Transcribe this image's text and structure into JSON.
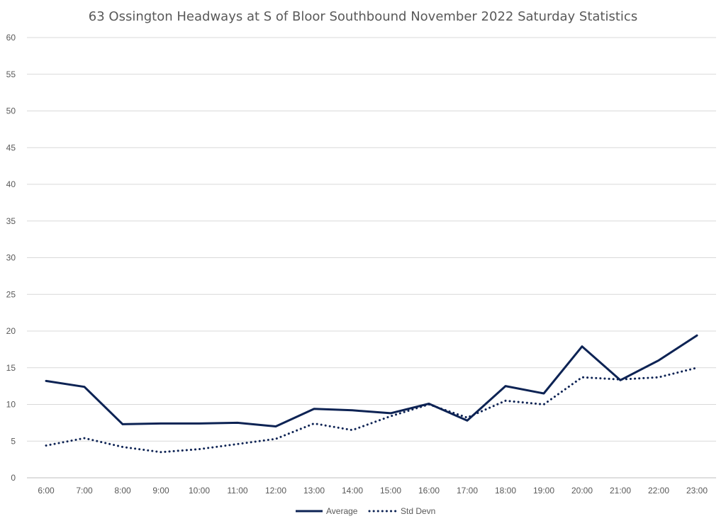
{
  "chart_data": {
    "type": "line",
    "title": "63 Ossington Headways at S of Bloor Southbound November 2022 Saturday Statistics",
    "xlabel": "",
    "ylabel": "",
    "categories": [
      "6:00",
      "7:00",
      "8:00",
      "9:00",
      "10:00",
      "11:00",
      "12:00",
      "13:00",
      "14:00",
      "15:00",
      "16:00",
      "17:00",
      "18:00",
      "19:00",
      "20:00",
      "21:00",
      "22:00",
      "23:00"
    ],
    "ylim": [
      0,
      60
    ],
    "yticks": [
      0,
      5,
      10,
      15,
      20,
      25,
      30,
      35,
      40,
      45,
      50,
      55,
      60
    ],
    "grid": true,
    "legend": "bottom",
    "series": [
      {
        "name": "Average",
        "style": "solid",
        "color": "#0d2354",
        "values": [
          13.2,
          12.4,
          7.3,
          7.4,
          7.4,
          7.5,
          7.0,
          9.4,
          9.2,
          8.8,
          10.1,
          7.8,
          12.5,
          11.5,
          17.9,
          13.3,
          16.0,
          19.4
        ]
      },
      {
        "name": "Std Devn",
        "style": "dotted",
        "color": "#0d2354",
        "values": [
          4.4,
          5.4,
          4.2,
          3.5,
          3.9,
          4.6,
          5.3,
          7.4,
          6.5,
          8.4,
          10.0,
          8.2,
          10.5,
          10.0,
          13.7,
          13.4,
          13.7,
          15.0
        ]
      }
    ]
  }
}
